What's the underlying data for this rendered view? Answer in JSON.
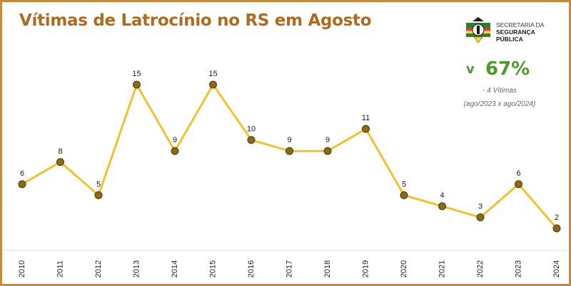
{
  "title": "Vítimas de Latrocínio no RS em Agosto",
  "logo": {
    "line1": "SECRETARIA DA",
    "line2": "SEGURANÇA",
    "line3": "PÚBLICA"
  },
  "stat": {
    "arrow": "v",
    "percent": "67%",
    "delta": "- 4 Vítimas",
    "period": "(ago/2023 x ago/2024)"
  },
  "colors": {
    "frame": "#c9893a",
    "title": "#b06a1e",
    "line": "#f2c12e",
    "marker_fill": "#8a6b14",
    "marker_stroke": "#4a3a0a",
    "stat_green": "#4f9a2c"
  },
  "chart_data": {
    "type": "line",
    "title": "Vítimas de Latrocínio no RS em Agosto",
    "categories": [
      "2010",
      "2011",
      "2012",
      "2013",
      "2014",
      "2015",
      "2016",
      "2017",
      "2018",
      "2019",
      "2020",
      "2021",
      "2022",
      "2023",
      "2024"
    ],
    "values": [
      6,
      8,
      5,
      15,
      9,
      15,
      10,
      9,
      9,
      11,
      5,
      4,
      3,
      6,
      2
    ],
    "ylim": [
      0,
      16
    ],
    "grid": false,
    "legend": "none",
    "data_labels": true
  }
}
